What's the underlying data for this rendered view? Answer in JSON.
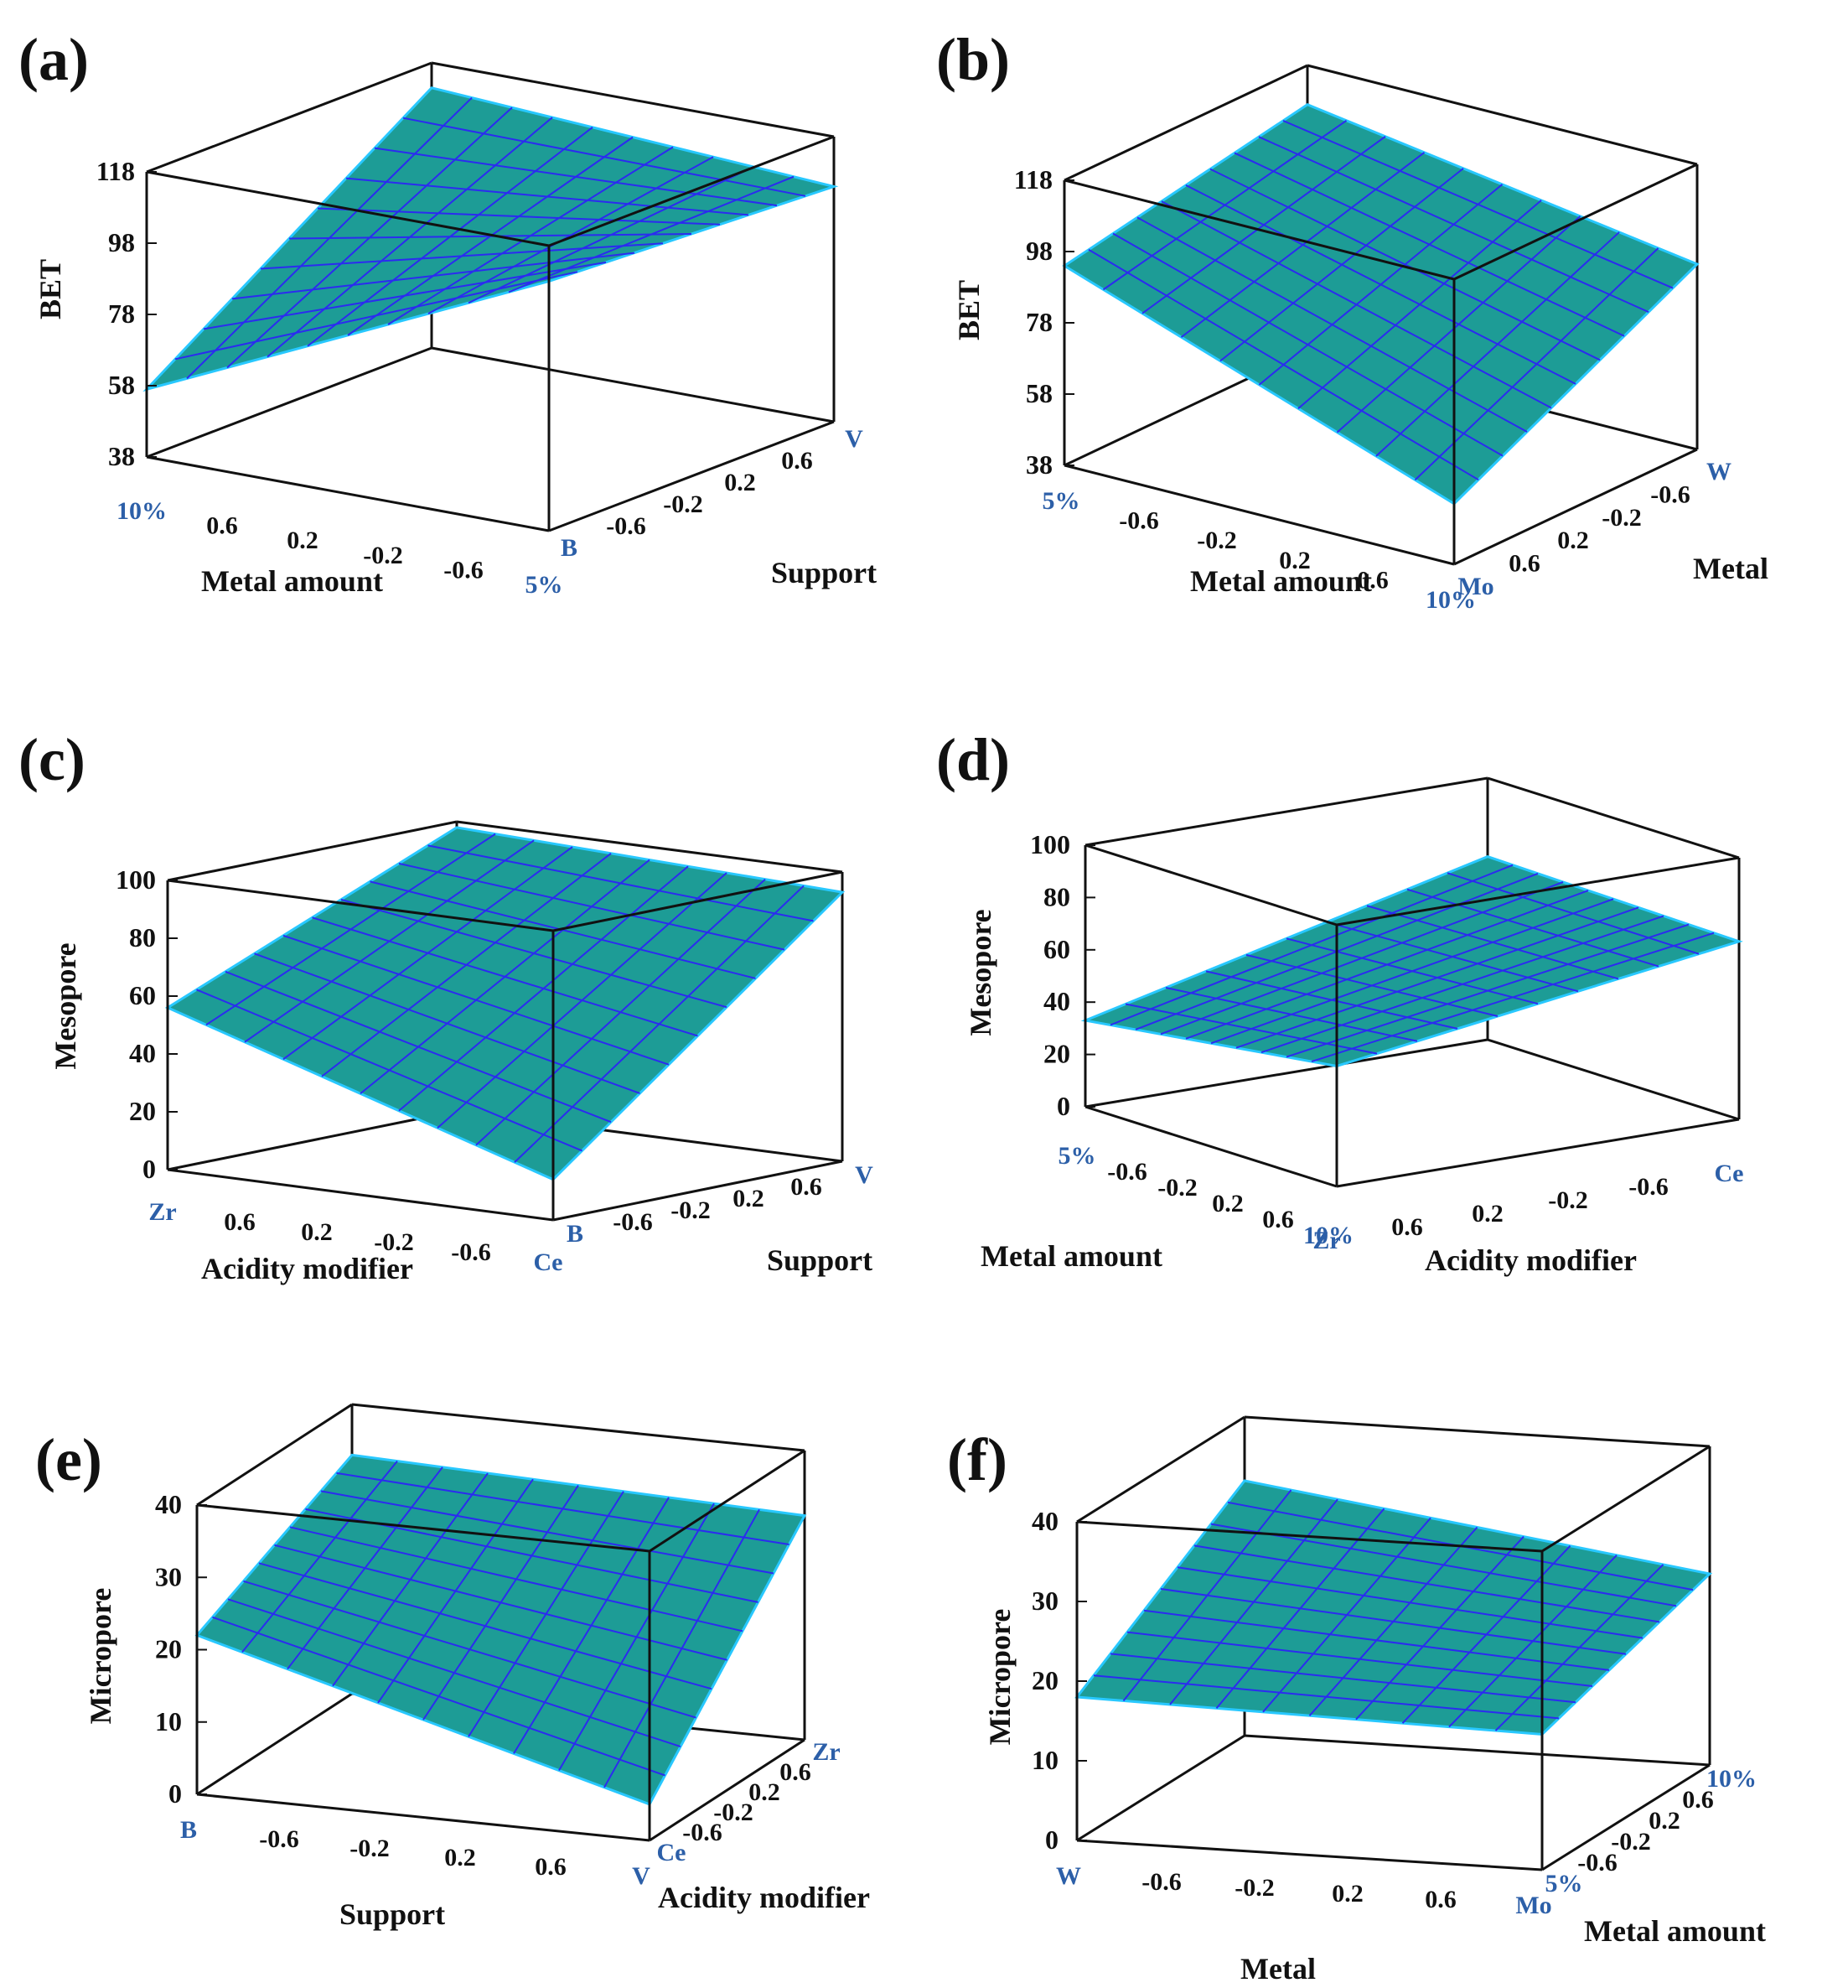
{
  "colors": {
    "surface": "#1d9c96",
    "surface_dark": "#167f7f",
    "grid": "#2b2bf0",
    "edge": "#28c8ff",
    "frame": "#111111",
    "end_label": "#2c5fa8",
    "text": "#111111"
  },
  "chart_data": [
    {
      "type": "surface3d",
      "panel": "(a)",
      "zlabel": "BET",
      "zticks": [
        "118",
        "98",
        "78",
        "58",
        "38"
      ],
      "zlim": [
        38,
        118
      ],
      "xlabel": "Metal amount",
      "xticks": [
        "10%",
        "0.6",
        "0.2",
        "-0.2",
        "-0.6",
        "5%"
      ],
      "ylabel": "Support",
      "yticks": [
        "B",
        "-0.6",
        "-0.2",
        "0.2",
        "0.6",
        "V"
      ],
      "surface_corners": {
        "x_low_y_low": 57,
        "x_high_y_low": 108,
        "x_low_y_high": 111,
        "x_high_y_high": 104
      }
    },
    {
      "type": "surface3d",
      "panel": "(b)",
      "zlabel": "BET",
      "zticks": [
        "118",
        "98",
        "78",
        "58",
        "38"
      ],
      "zlim": [
        38,
        118
      ],
      "xlabel": "Metal amount",
      "xticks": [
        "5%",
        "-0.6",
        "-0.2",
        "0.2",
        "0.6",
        "10%"
      ],
      "ylabel": "Metal",
      "yticks": [
        "Mo",
        "0.6",
        "0.2",
        "-0.2",
        "-0.6",
        "W"
      ],
      "surface_corners": {
        "x_low_y_low": 94,
        "x_high_y_low": 55,
        "x_low_y_high": 107,
        "x_high_y_high": 90
      }
    },
    {
      "type": "surface3d",
      "panel": "(c)",
      "zlabel": "Mesopore",
      "zticks": [
        "100",
        "80",
        "60",
        "40",
        "20",
        "0"
      ],
      "zlim": [
        0,
        100
      ],
      "xlabel": "Acidity modifier",
      "xticks": [
        "Zr",
        "0.6",
        "0.2",
        "-0.2",
        "-0.6",
        "Ce"
      ],
      "ylabel": "Support",
      "yticks": [
        "B",
        "-0.6",
        "-0.2",
        "0.2",
        "0.6",
        "V"
      ],
      "surface_corners": {
        "x_low_y_low": 56,
        "x_high_y_low": 14,
        "x_low_y_high": 98,
        "x_high_y_high": 93
      }
    },
    {
      "type": "surface3d",
      "panel": "(d)",
      "zlabel": "Mesopore",
      "zticks": [
        "100",
        "80",
        "60",
        "40",
        "20",
        "0"
      ],
      "zlim": [
        0,
        100
      ],
      "xlabel": "Metal amount",
      "xticks": [
        "5%",
        "-0.6",
        "-0.2",
        "0.2",
        "0.6",
        "10%"
      ],
      "ylabel": "Acidity modifier",
      "yticks": [
        "Zr",
        "0.6",
        "0.2",
        "-0.2",
        "-0.6",
        "Ce"
      ],
      "surface_corners": {
        "x_low_y_low": 33,
        "x_high_y_low": 46,
        "x_low_y_high": 70,
        "x_high_y_high": 68
      }
    },
    {
      "type": "surface3d",
      "panel": "(e)",
      "zlabel": "Micropore",
      "zticks": [
        "40",
        "30",
        "20",
        "10",
        "0"
      ],
      "zlim": [
        0,
        40
      ],
      "xlabel": "Support",
      "xticks": [
        "B",
        "-0.6",
        "-0.2",
        "0.2",
        "0.6",
        "V"
      ],
      "ylabel": "Acidity modifier",
      "yticks": [
        "Ce",
        "-0.6",
        "-0.2",
        "0.2",
        "0.6",
        "Zr"
      ],
      "surface_corners": {
        "x_low_y_low": 22,
        "x_high_y_low": 5,
        "x_low_y_high": 33,
        "x_high_y_high": 31
      }
    },
    {
      "type": "surface3d",
      "panel": "(f)",
      "zlabel": "Micropore",
      "zticks": [
        "40",
        "30",
        "20",
        "10",
        "0"
      ],
      "zlim": [
        0,
        40
      ],
      "xlabel": "Metal",
      "xticks": [
        "W",
        "-0.6",
        "-0.2",
        "0.2",
        "0.6",
        "Mo"
      ],
      "ylabel": "Metal amount",
      "yticks": [
        "5%",
        "-0.6",
        "-0.2",
        "0.2",
        "0.6",
        "10%"
      ],
      "surface_corners": {
        "x_low_y_low": 18,
        "x_high_y_low": 17,
        "x_low_y_high": 32,
        "x_high_y_high": 24
      }
    }
  ]
}
